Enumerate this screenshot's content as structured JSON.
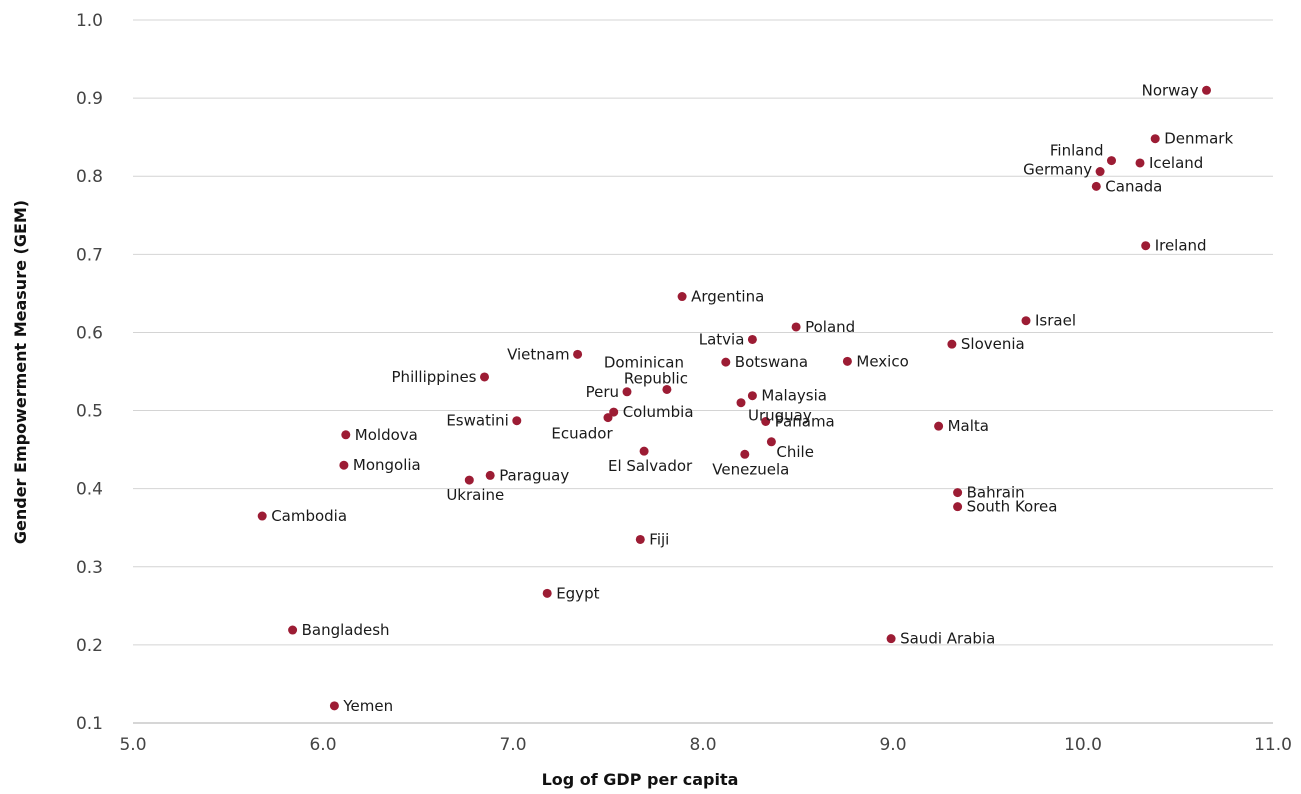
{
  "chart_data": {
    "type": "scatter",
    "title": "",
    "xlabel": "Log of GDP per capita",
    "ylabel": "Gender Empowerment Measure (GEM)",
    "xlim": [
      5.0,
      11.0
    ],
    "ylim": [
      0.1,
      1.0
    ],
    "x_ticks": [
      "5.0",
      "6.0",
      "7.0",
      "8.0",
      "9.0",
      "10.0",
      "11.0"
    ],
    "y_ticks": [
      "0.1",
      "0.2",
      "0.3",
      "0.4",
      "0.5",
      "0.6",
      "0.7",
      "0.8",
      "0.9",
      "1.0"
    ],
    "grid": "horizontal",
    "marker_color": "#9c1c34",
    "points": [
      {
        "label": "Norway",
        "x": 10.65,
        "y": 0.91
      },
      {
        "label": "Denmark",
        "x": 10.38,
        "y": 0.848
      },
      {
        "label": "Finland",
        "x": 10.15,
        "y": 0.82
      },
      {
        "label": "Iceland",
        "x": 10.3,
        "y": 0.817
      },
      {
        "label": "Germany",
        "x": 10.09,
        "y": 0.806
      },
      {
        "label": "Canada",
        "x": 10.07,
        "y": 0.787
      },
      {
        "label": "Ireland",
        "x": 10.33,
        "y": 0.711
      },
      {
        "label": "Argentina",
        "x": 7.89,
        "y": 0.646
      },
      {
        "label": "Poland",
        "x": 8.49,
        "y": 0.607
      },
      {
        "label": "Israel",
        "x": 9.7,
        "y": 0.615
      },
      {
        "label": "Latvia",
        "x": 8.26,
        "y": 0.591
      },
      {
        "label": "Slovenia",
        "x": 9.31,
        "y": 0.585
      },
      {
        "label": "Vietnam",
        "x": 7.34,
        "y": 0.572
      },
      {
        "label": "Dominican Republic",
        "x": 7.81,
        "y": 0.527
      },
      {
        "label": "Botswana",
        "x": 8.12,
        "y": 0.562
      },
      {
        "label": "Mexico",
        "x": 8.76,
        "y": 0.563
      },
      {
        "label": "Phillippines",
        "x": 6.85,
        "y": 0.543
      },
      {
        "label": "Peru",
        "x": 7.6,
        "y": 0.524
      },
      {
        "label": "Malaysia",
        "x": 8.26,
        "y": 0.519
      },
      {
        "label": "Uruguay",
        "x": 8.2,
        "y": 0.51
      },
      {
        "label": "Columbia",
        "x": 7.53,
        "y": 0.498
      },
      {
        "label": "Ecuador",
        "x": 7.5,
        "y": 0.491
      },
      {
        "label": "Eswatini",
        "x": 7.02,
        "y": 0.487
      },
      {
        "label": "Panama",
        "x": 8.33,
        "y": 0.486
      },
      {
        "label": "Malta",
        "x": 9.24,
        "y": 0.48
      },
      {
        "label": "Moldova",
        "x": 6.12,
        "y": 0.469
      },
      {
        "label": "Chile",
        "x": 8.36,
        "y": 0.46
      },
      {
        "label": "El Salvador",
        "x": 7.69,
        "y": 0.448
      },
      {
        "label": "Venezuela",
        "x": 8.22,
        "y": 0.444
      },
      {
        "label": "Mongolia",
        "x": 6.11,
        "y": 0.43
      },
      {
        "label": "Paraguay",
        "x": 6.88,
        "y": 0.417
      },
      {
        "label": "Ukraine",
        "x": 6.77,
        "y": 0.411
      },
      {
        "label": "Bahrain",
        "x": 9.34,
        "y": 0.395
      },
      {
        "label": "South Korea",
        "x": 9.34,
        "y": 0.377
      },
      {
        "label": "Cambodia",
        "x": 5.68,
        "y": 0.365
      },
      {
        "label": "Fiji",
        "x": 7.67,
        "y": 0.335
      },
      {
        "label": "Egypt",
        "x": 7.18,
        "y": 0.266
      },
      {
        "label": "Bangladesh",
        "x": 5.84,
        "y": 0.219
      },
      {
        "label": "Saudi Arabia",
        "x": 8.99,
        "y": 0.208
      },
      {
        "label": "Yemen",
        "x": 6.06,
        "y": 0.122
      }
    ]
  }
}
